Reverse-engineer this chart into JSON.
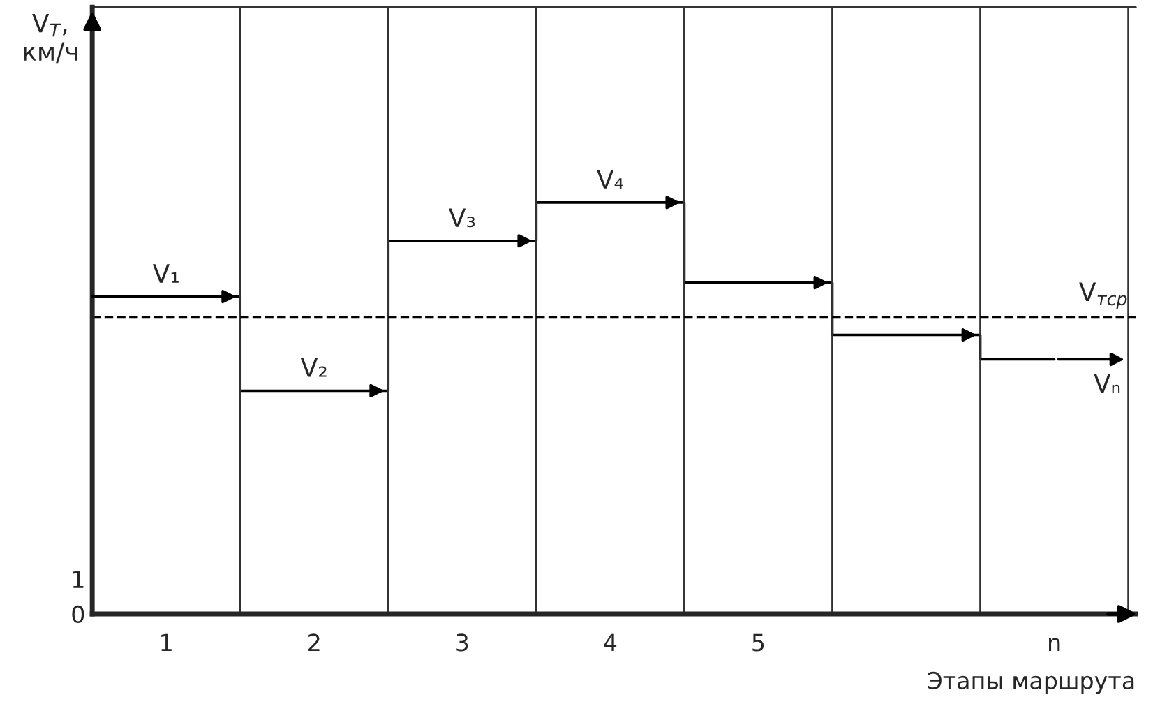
{
  "chart_data": {
    "type": "step",
    "categories": [
      "1",
      "2",
      "3",
      "4",
      "5",
      null,
      "n"
    ],
    "values": [
      9.1,
      6.4,
      10.7,
      11.8,
      9.5,
      8.0,
      7.3
    ],
    "color": "#000000",
    "ylim": [
      0,
      17.4
    ],
    "yticks": [
      0,
      1
    ],
    "ylabel": "V$_{T}$,\nкм/ч",
    "xlabel": "Этапы маршрута",
    "ref_lines": [
      {
        "axis": "y",
        "value": 8.5,
        "label": "V$_{тср}$",
        "line_style": "dashed",
        "color": "#000000"
      }
    ],
    "annotations": [
      {
        "text": "V₁",
        "x": "1",
        "y": 9.1
      },
      {
        "text": "V₂",
        "x": "2",
        "y": 6.4
      },
      {
        "text": "V₃",
        "x": "3",
        "y": 10.7
      },
      {
        "text": "V₄",
        "x": "4",
        "y": 11.8
      },
      {
        "text": "Vₙ",
        "x": "n",
        "y": 7.3
      }
    ],
    "grid": false,
    "legend": false
  }
}
